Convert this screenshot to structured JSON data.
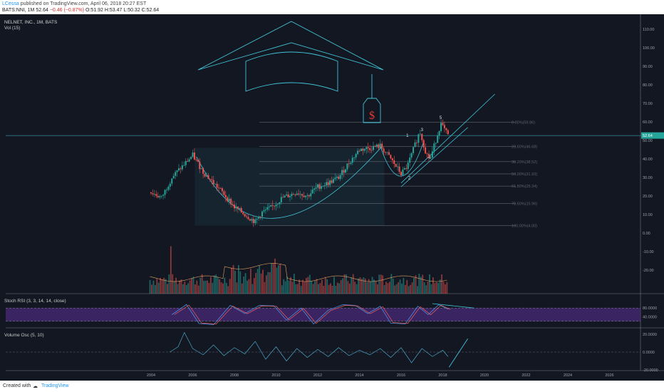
{
  "header": {
    "user": "LCessa",
    "published": "published on TradingView.com, April 06, 2018 20:27 EST",
    "symbol": "BATS:NNI, 1M",
    "last": "52.64",
    "change": "−0.46 (−0.87%)",
    "ohlc": "O:51.92 H:53.47 L:50.32 C:52.64"
  },
  "footer": {
    "created_with": "Created with",
    "brand": "TradingView"
  },
  "chart_data": {
    "type": "line",
    "title": "NELNET, INC., 1M, BATS",
    "volume_label": "Vol (15)",
    "price_axis": {
      "ticks": [
        "110.00",
        "100.00",
        "90.00",
        "80.00",
        "70.00",
        "60.00",
        "50.00",
        "40.00",
        "30.00",
        "20.00",
        "10.00",
        "0.00",
        "-10.00",
        "-20.00"
      ],
      "current": "52.64"
    },
    "x_axis": {
      "ticks": [
        "2004",
        "2006",
        "2008",
        "2010",
        "2012",
        "2014",
        "2016",
        "2018",
        "2020",
        "2022",
        "2024",
        "2026"
      ]
    },
    "fib_levels": [
      {
        "label": "0.00%(59.86)",
        "value": 59.86
      },
      {
        "label": "23.60%(46.68)",
        "value": 46.68
      },
      {
        "label": "38.20%(38.52)",
        "value": 38.52
      },
      {
        "label": "50.00%(31.93)",
        "value": 31.93
      },
      {
        "label": "61.80%(25.34)",
        "value": 25.34
      },
      {
        "label": "78.60%(15.96)",
        "value": 15.96
      },
      {
        "label": "100.00%(4.00)",
        "value": 4.0
      }
    ],
    "wave_labels": [
      "1",
      "2",
      "3",
      "4",
      "5"
    ],
    "price_series": [
      {
        "date": 2004.0,
        "price": 22
      },
      {
        "date": 2004.5,
        "price": 19
      },
      {
        "date": 2005.0,
        "price": 30
      },
      {
        "date": 2005.5,
        "price": 36
      },
      {
        "date": 2006.0,
        "price": 42
      },
      {
        "date": 2006.5,
        "price": 33
      },
      {
        "date": 2007.0,
        "price": 27
      },
      {
        "date": 2007.5,
        "price": 21
      },
      {
        "date": 2008.0,
        "price": 14
      },
      {
        "date": 2008.5,
        "price": 10
      },
      {
        "date": 2009.0,
        "price": 6
      },
      {
        "date": 2009.3,
        "price": 11
      },
      {
        "date": 2009.8,
        "price": 14
      },
      {
        "date": 2010.3,
        "price": 19
      },
      {
        "date": 2011.0,
        "price": 22
      },
      {
        "date": 2011.5,
        "price": 20
      },
      {
        "date": 2012.0,
        "price": 25
      },
      {
        "date": 2012.5,
        "price": 27
      },
      {
        "date": 2013.0,
        "price": 30
      },
      {
        "date": 2013.5,
        "price": 38
      },
      {
        "date": 2014.0,
        "price": 45
      },
      {
        "date": 2014.5,
        "price": 46
      },
      {
        "date": 2015.0,
        "price": 47
      },
      {
        "date": 2015.5,
        "price": 40
      },
      {
        "date": 2016.0,
        "price": 32
      },
      {
        "date": 2016.3,
        "price": 36
      },
      {
        "date": 2016.9,
        "price": 55
      },
      {
        "date": 2017.2,
        "price": 43
      },
      {
        "date": 2017.4,
        "price": 40
      },
      {
        "date": 2017.9,
        "price": 59
      },
      {
        "date": 2018.25,
        "price": 52.64
      }
    ],
    "stoch_rsi": {
      "label": "Stoch RSI (3, 3, 14, 14, close)",
      "ticks": [
        "80.0000",
        "40.0000"
      ],
      "k": [
        {
          "date": 2005.0,
          "value": 50
        },
        {
          "date": 2005.7,
          "value": 96
        },
        {
          "date": 2006.3,
          "value": 10
        },
        {
          "date": 2007.0,
          "value": 5
        },
        {
          "date": 2007.8,
          "value": 92
        },
        {
          "date": 2008.5,
          "value": 55
        },
        {
          "date": 2009.2,
          "value": 92
        },
        {
          "date": 2009.9,
          "value": 90
        },
        {
          "date": 2010.5,
          "value": 25
        },
        {
          "date": 2011.2,
          "value": 80
        },
        {
          "date": 2011.8,
          "value": 8
        },
        {
          "date": 2012.5,
          "value": 70
        },
        {
          "date": 2013.2,
          "value": 95
        },
        {
          "date": 2013.8,
          "value": 92
        },
        {
          "date": 2014.4,
          "value": 55
        },
        {
          "date": 2015.0,
          "value": 88
        },
        {
          "date": 2015.5,
          "value": 12
        },
        {
          "date": 2016.2,
          "value": 8
        },
        {
          "date": 2016.8,
          "value": 88
        },
        {
          "date": 2017.3,
          "value": 50
        },
        {
          "date": 2017.8,
          "value": 95
        },
        {
          "date": 2018.25,
          "value": 75
        }
      ]
    },
    "volume_osc": {
      "label": "Volume Osc (5, 10)",
      "ticks": [
        "20.0000",
        "0.0000",
        "-20.0000"
      ],
      "series": [
        {
          "date": 2004.9,
          "value": 0
        },
        {
          "date": 2005.3,
          "value": 6
        },
        {
          "date": 2005.6,
          "value": 22
        },
        {
          "date": 2006.0,
          "value": 4
        },
        {
          "date": 2006.5,
          "value": -3
        },
        {
          "date": 2007.0,
          "value": 8
        },
        {
          "date": 2007.5,
          "value": -4
        },
        {
          "date": 2008.0,
          "value": 5
        },
        {
          "date": 2008.5,
          "value": -2
        },
        {
          "date": 2009.0,
          "value": 12
        },
        {
          "date": 2009.5,
          "value": -8
        },
        {
          "date": 2010.0,
          "value": 6
        },
        {
          "date": 2010.5,
          "value": -10
        },
        {
          "date": 2011.0,
          "value": 4
        },
        {
          "date": 2011.5,
          "value": -6
        },
        {
          "date": 2012.0,
          "value": 3
        },
        {
          "date": 2012.5,
          "value": -5
        },
        {
          "date": 2013.0,
          "value": 5
        },
        {
          "date": 2013.5,
          "value": -4
        },
        {
          "date": 2014.0,
          "value": 2
        },
        {
          "date": 2014.5,
          "value": -3
        },
        {
          "date": 2015.0,
          "value": 4
        },
        {
          "date": 2015.5,
          "value": -6
        },
        {
          "date": 2016.0,
          "value": 5
        },
        {
          "date": 2016.5,
          "value": -12
        },
        {
          "date": 2017.0,
          "value": 4
        },
        {
          "date": 2017.5,
          "value": -5
        },
        {
          "date": 2018.0,
          "value": 2
        },
        {
          "date": 2018.25,
          "value": -5
        }
      ],
      "trend_line": [
        {
          "date": 2018.3,
          "value": -17
        },
        {
          "date": 2019.2,
          "value": 15
        }
      ]
    },
    "colors": {
      "background": "#131722",
      "accent": "#40c4d8",
      "up": "#26a69a",
      "down": "#ef5350",
      "rsi_band": "#4a2a78",
      "dollar": "#e53935"
    }
  }
}
